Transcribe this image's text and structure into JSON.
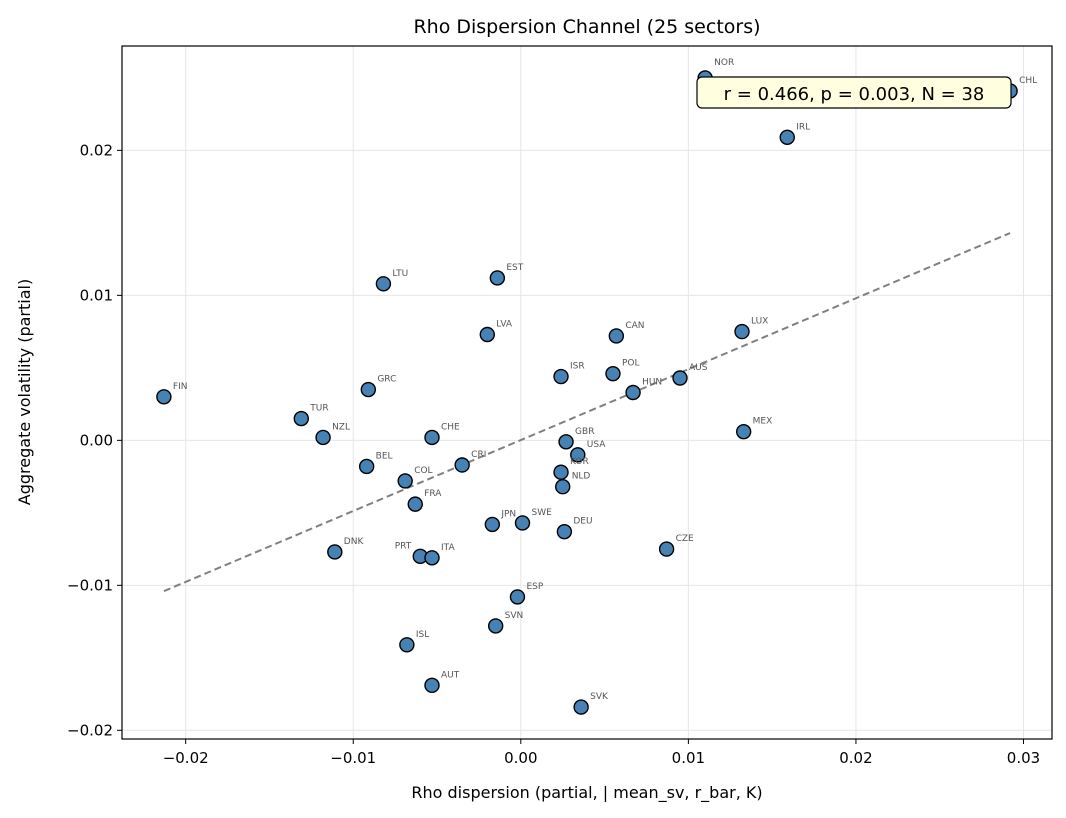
{
  "chart_data": {
    "type": "scatter",
    "title": "Rho Dispersion Channel (25 sectors)",
    "xlabel": "Rho dispersion (partial, | mean_sv, r_bar, K)",
    "ylabel": "Aggregate volatility (partial)",
    "xlim": [
      -0.0238,
      0.0317
    ],
    "ylim": [
      -0.0206,
      0.0272
    ],
    "grid": true,
    "xticks": [
      -0.02,
      -0.01,
      0.0,
      0.01,
      0.02,
      0.03
    ],
    "xtick_labels": [
      "−0.02",
      "−0.01",
      "0.00",
      "0.01",
      "0.02",
      "0.03"
    ],
    "yticks": [
      -0.02,
      -0.01,
      0.0,
      0.01,
      0.02
    ],
    "ytick_labels": [
      "−0.02",
      "−0.01",
      "0.00",
      "0.01",
      "0.02"
    ],
    "annotation": "r = 0.466, p = 0.003, N = 38",
    "point_color": "#4682b4",
    "trend_color": "#808080",
    "trend_line": {
      "x": [
        -0.0213,
        0.0292
      ],
      "y": [
        -0.0104,
        0.0143
      ]
    },
    "points": [
      {
        "label": "NOR",
        "x": 0.011,
        "y": 0.025
      },
      {
        "label": "CHL",
        "x": 0.0292,
        "y": 0.0241
      },
      {
        "label": "IRL",
        "x": 0.0159,
        "y": 0.0209
      },
      {
        "label": "LTU",
        "x": -0.0082,
        "y": 0.0108
      },
      {
        "label": "EST",
        "x": -0.0014,
        "y": 0.0112
      },
      {
        "label": "LVA",
        "x": -0.002,
        "y": 0.0073
      },
      {
        "label": "CAN",
        "x": 0.0057,
        "y": 0.0072
      },
      {
        "label": "LUX",
        "x": 0.0132,
        "y": 0.0075
      },
      {
        "label": "ISR",
        "x": 0.0024,
        "y": 0.0044
      },
      {
        "label": "POL",
        "x": 0.0055,
        "y": 0.0046
      },
      {
        "label": "HUN",
        "x": 0.0067,
        "y": 0.0033
      },
      {
        "label": "AUS",
        "x": 0.0095,
        "y": 0.0043
      },
      {
        "label": "FIN",
        "x": -0.0213,
        "y": 0.003
      },
      {
        "label": "GRC",
        "x": -0.0091,
        "y": 0.0035
      },
      {
        "label": "TUR",
        "x": -0.0131,
        "y": 0.0015
      },
      {
        "label": "NZL",
        "x": -0.0118,
        "y": 0.0002
      },
      {
        "label": "CHE",
        "x": -0.0053,
        "y": 0.0002
      },
      {
        "label": "MEX",
        "x": 0.0133,
        "y": 0.0006
      },
      {
        "label": "GBR",
        "x": 0.0027,
        "y": -0.0001
      },
      {
        "label": "USA",
        "x": 0.0034,
        "y": -0.001
      },
      {
        "label": "BEL",
        "x": -0.0092,
        "y": -0.0018
      },
      {
        "label": "CRI",
        "x": -0.0035,
        "y": -0.0017
      },
      {
        "label": "KOR",
        "x": 0.0024,
        "y": -0.0022
      },
      {
        "label": "NLD",
        "x": 0.0025,
        "y": -0.0032
      },
      {
        "label": "COL",
        "x": -0.0069,
        "y": -0.0028
      },
      {
        "label": "FRA",
        "x": -0.0063,
        "y": -0.0044
      },
      {
        "label": "JPN",
        "x": -0.0017,
        "y": -0.0058
      },
      {
        "label": "SWE",
        "x": 0.0001,
        "y": -0.0057
      },
      {
        "label": "DEU",
        "x": 0.0026,
        "y": -0.0063
      },
      {
        "label": "CZE",
        "x": 0.0087,
        "y": -0.0075
      },
      {
        "label": "DNK",
        "x": -0.0111,
        "y": -0.0077
      },
      {
        "label": "PRT",
        "x": -0.006,
        "y": -0.008
      },
      {
        "label": "ITA",
        "x": -0.0053,
        "y": -0.0081
      },
      {
        "label": "ESP",
        "x": -0.0002,
        "y": -0.0108
      },
      {
        "label": "SVN",
        "x": -0.0015,
        "y": -0.0128
      },
      {
        "label": "ISL",
        "x": -0.0068,
        "y": -0.0141
      },
      {
        "label": "AUT",
        "x": -0.0053,
        "y": -0.0169
      },
      {
        "label": "SVK",
        "x": 0.0036,
        "y": -0.0184
      }
    ]
  }
}
